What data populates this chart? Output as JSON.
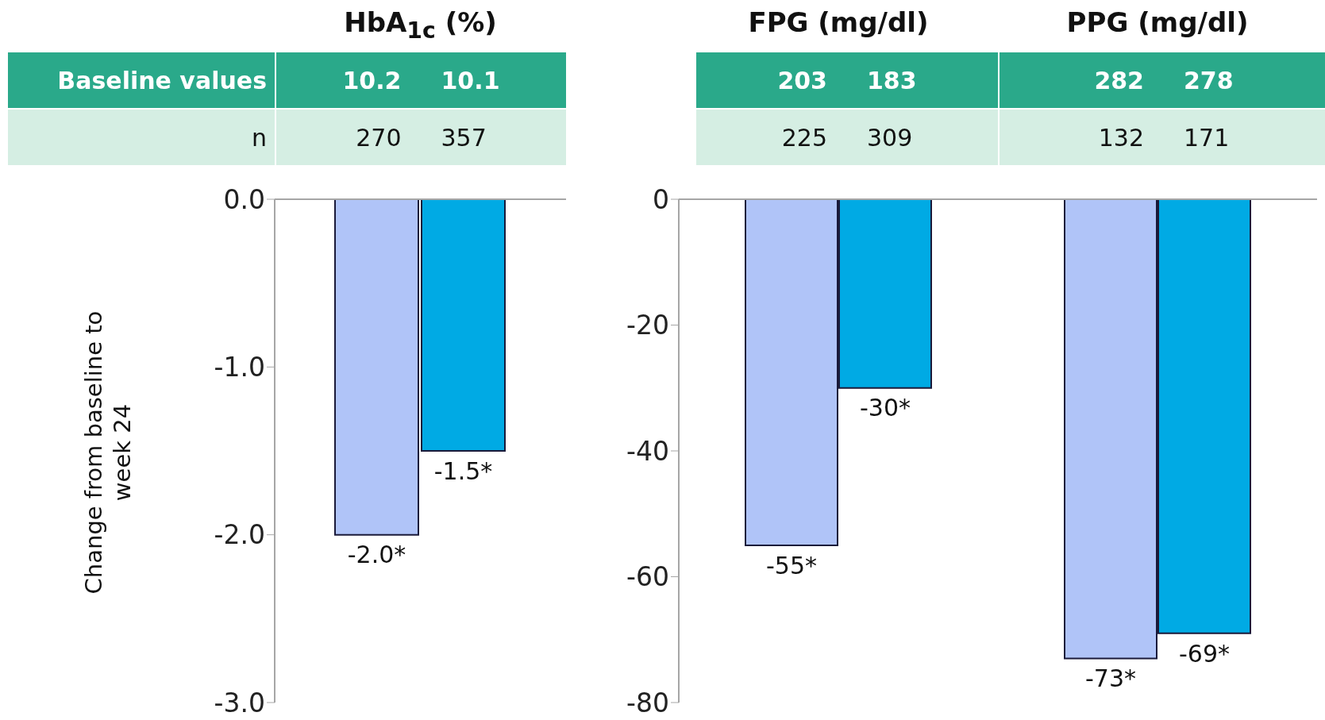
{
  "chart_data": [
    {
      "type": "bar",
      "title": "HbA$_{1c}$ (%)",
      "ylabel": "Change from baseline to week 24",
      "categories": [
        null,
        null
      ],
      "values": [
        -2.0,
        -1.5
      ],
      "colors": [
        "#b0c4f8",
        "#00aae4"
      ],
      "value_labels": [
        "-2.0*",
        "-1.5*"
      ],
      "ylim": [
        -3,
        0
      ],
      "yticks": [
        {
          "value": 0,
          "label": "0.0"
        },
        {
          "value": -1,
          "label": "-1.0"
        },
        {
          "value": -2,
          "label": "-2.0"
        },
        {
          "value": -3,
          "label": "-3.0"
        }
      ],
      "annotations": [
        "Baseline values",
        "10.2",
        "10.1",
        "n",
        "270",
        "357"
      ]
    },
    {
      "type": "bar",
      "categories": [
        "FPG (mg/dl)",
        "PPG (mg/dl)"
      ],
      "series": [
        {
          "color": "#b0c4f8",
          "values": [
            -55,
            -73
          ],
          "value_labels": [
            "-55*",
            "-73*"
          ]
        },
        {
          "color": "#00aae4",
          "values": [
            -30,
            -69
          ],
          "value_labels": [
            "-30*",
            "-69*"
          ]
        }
      ],
      "ylim": [
        -80,
        0
      ],
      "yticks": [
        0,
        -20,
        -40,
        -60,
        -80
      ],
      "annotations": [
        "203",
        "183",
        "282",
        "278",
        "225",
        "309",
        "132",
        "171"
      ]
    }
  ]
}
